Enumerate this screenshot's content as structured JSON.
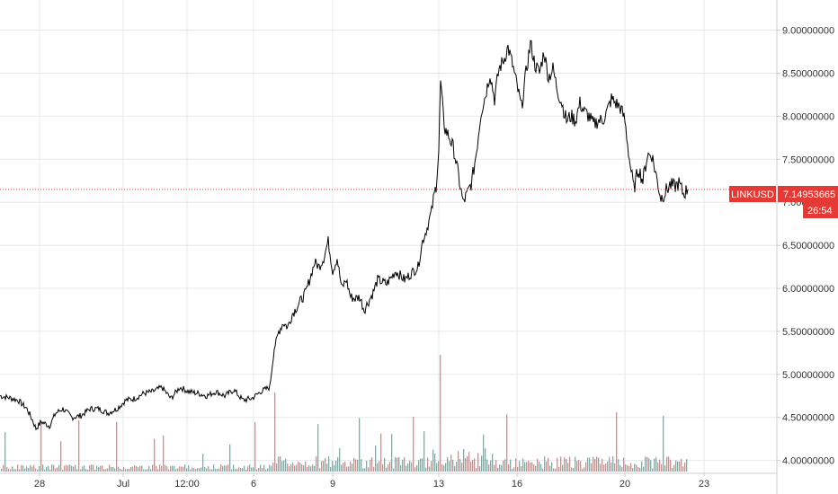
{
  "chart_data": {
    "type": "line",
    "symbol": "LINKUSD",
    "last_price": "7.14953665",
    "countdown": "26:54",
    "accent_color": "#e53935",
    "volume_colors": {
      "up": "#26a69a",
      "down": "#ef5350"
    },
    "ylim": [
      3.85,
      9.35
    ],
    "xlim": [
      0,
      932
    ],
    "y_ticks": [
      {
        "value": 4.0,
        "label": "4.00000000"
      },
      {
        "value": 4.5,
        "label": "4.50000000"
      },
      {
        "value": 5.0,
        "label": "5.00000000"
      },
      {
        "value": 5.5,
        "label": "5.50000000"
      },
      {
        "value": 6.0,
        "label": "6.00000000"
      },
      {
        "value": 6.5,
        "label": "6.50000000"
      },
      {
        "value": 7.0,
        "label": "7.00000000"
      },
      {
        "value": 7.5,
        "label": "7.50000000"
      },
      {
        "value": 8.0,
        "label": "8.00000000"
      },
      {
        "value": 8.5,
        "label": "8.50000000"
      },
      {
        "value": 9.0,
        "label": "9.00000000"
      }
    ],
    "x_ticks": [
      "28",
      "Jul",
      "12:00",
      "6",
      "9",
      "13",
      "16",
      "20",
      "23"
    ],
    "series": [
      {
        "x": [
          0,
          10,
          20,
          30,
          36,
          40,
          46,
          55,
          62,
          70,
          80,
          90,
          100,
          110,
          120,
          130,
          140,
          150,
          160,
          170,
          180,
          190,
          200,
          210,
          220,
          230,
          240,
          250,
          260,
          270,
          280,
          290,
          300,
          305,
          310,
          315,
          320,
          325,
          330,
          340,
          350,
          355,
          360,
          365,
          370,
          375,
          380,
          385,
          390,
          395,
          400,
          405,
          410,
          415,
          420,
          430,
          440,
          450,
          460,
          465,
          470,
          475,
          480,
          485,
          488,
          490,
          493,
          495,
          500,
          505,
          510,
          515,
          520,
          525,
          530,
          535,
          540,
          545,
          550,
          555,
          560,
          565,
          570,
          575,
          580,
          585,
          590,
          595,
          600,
          605,
          610,
          615,
          620,
          625,
          630,
          635,
          640,
          645,
          650,
          655,
          660,
          665,
          670,
          675,
          680,
          685,
          690,
          695,
          700,
          705,
          710,
          715,
          720,
          725,
          730,
          735,
          740,
          745,
          750,
          755,
          760,
          765
        ],
        "values": [
          4.75,
          4.73,
          4.7,
          4.6,
          4.47,
          4.37,
          4.45,
          4.4,
          4.55,
          4.6,
          4.5,
          4.52,
          4.6,
          4.6,
          4.55,
          4.6,
          4.7,
          4.72,
          4.78,
          4.8,
          4.85,
          4.72,
          4.85,
          4.8,
          4.78,
          4.75,
          4.8,
          4.75,
          4.82,
          4.7,
          4.72,
          4.8,
          4.85,
          5.3,
          5.5,
          5.6,
          5.55,
          5.7,
          5.78,
          5.95,
          6.3,
          6.25,
          6.35,
          6.55,
          6.2,
          6.35,
          6.0,
          6.1,
          5.9,
          5.88,
          5.9,
          5.75,
          5.85,
          5.95,
          6.1,
          6.05,
          6.2,
          6.1,
          6.2,
          6.25,
          6.55,
          6.7,
          6.9,
          7.2,
          7.6,
          8.4,
          8.0,
          7.85,
          7.75,
          7.6,
          7.3,
          7.0,
          7.1,
          7.25,
          7.6,
          8.05,
          8.25,
          8.5,
          8.2,
          8.55,
          8.65,
          8.8,
          8.6,
          8.35,
          8.1,
          8.5,
          8.85,
          8.6,
          8.5,
          8.75,
          8.45,
          8.55,
          8.3,
          8.15,
          7.95,
          8.0,
          7.95,
          8.15,
          8.05,
          8.0,
          7.9,
          7.95,
          7.95,
          8.05,
          8.2,
          8.15,
          8.1,
          7.95,
          7.5,
          7.15,
          7.4,
          7.25,
          7.55,
          7.55,
          7.3,
          7.05,
          7.12,
          7.2,
          7.18,
          7.22,
          7.1,
          7.15
        ]
      }
    ]
  }
}
